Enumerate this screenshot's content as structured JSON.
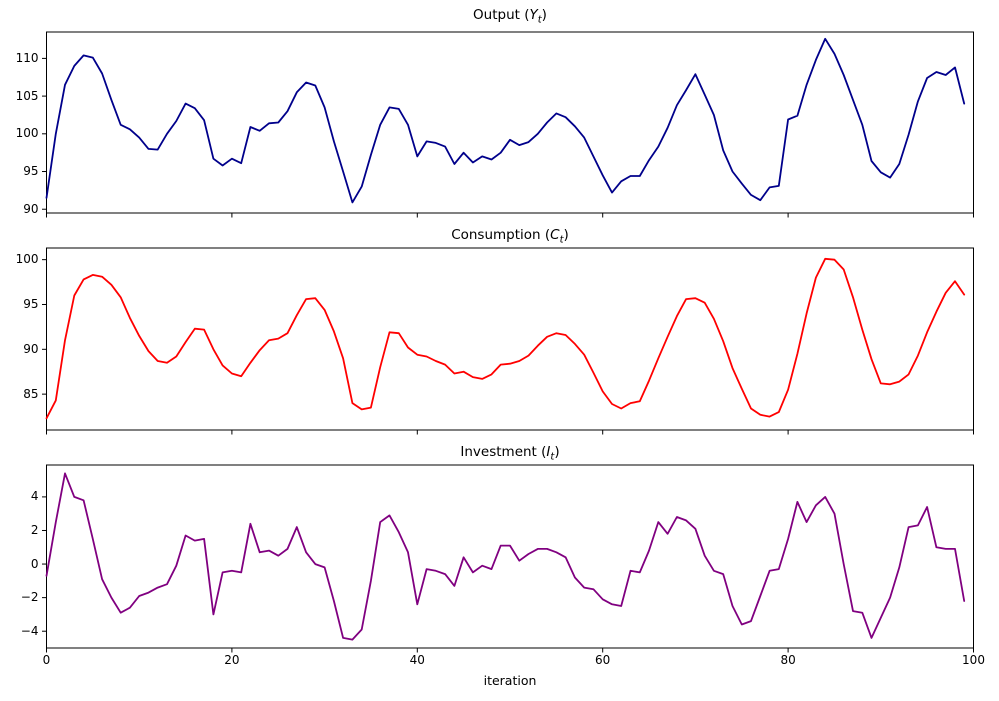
{
  "figure": {
    "background_color": "#ffffff",
    "xlabel": "iteration",
    "xlim": [
      0,
      100
    ],
    "x_ticks": [
      0,
      20,
      40,
      60,
      80,
      100
    ]
  },
  "chart_data": [
    {
      "type": "line",
      "name": "output",
      "title": {
        "prefix": "Output (",
        "symbol": "Y",
        "sub": "t",
        "suffix": ")"
      },
      "line_color": "#00008B",
      "ylim": [
        89.5,
        113.5
      ],
      "y_ticks": [
        90,
        95,
        100,
        105,
        110
      ],
      "x_start": 0,
      "x_step": 1,
      "values": [
        91.5,
        100.0,
        106.5,
        109.0,
        110.4,
        110.1,
        108.0,
        104.5,
        101.2,
        100.6,
        99.5,
        98.0,
        97.9,
        100.0,
        101.7,
        104.0,
        103.4,
        101.8,
        96.7,
        95.8,
        96.7,
        96.1,
        100.9,
        100.4,
        101.4,
        101.5,
        103.0,
        105.5,
        106.8,
        106.4,
        103.5,
        99.0,
        95.0,
        90.9,
        93.0,
        97.2,
        101.2,
        103.5,
        103.3,
        101.2,
        97.0,
        99.0,
        98.8,
        98.3,
        96.0,
        97.5,
        96.2,
        97.0,
        96.6,
        97.5,
        99.2,
        98.5,
        98.9,
        100.0,
        101.5,
        102.7,
        102.2,
        101.0,
        99.5,
        97.0,
        94.5,
        92.2,
        93.7,
        94.4,
        94.4,
        96.5,
        98.3,
        100.8,
        103.8,
        105.8,
        107.9,
        105.2,
        102.5,
        97.8,
        95.0,
        93.4,
        91.9,
        91.2,
        92.9,
        93.1,
        101.9,
        102.4,
        106.5,
        109.8,
        112.6,
        110.6,
        107.8,
        104.5,
        101.2,
        96.4,
        94.9,
        94.2,
        96.0,
        99.9,
        104.3,
        107.4,
        108.2,
        107.8,
        108.8,
        104.0
      ]
    },
    {
      "type": "line",
      "name": "consumption",
      "title": {
        "prefix": "Consumption (",
        "symbol": "C",
        "sub": "t",
        "suffix": ")"
      },
      "line_color": "#FF0000",
      "ylim": [
        81.0,
        101.3
      ],
      "y_ticks": [
        85,
        90,
        95,
        100
      ],
      "x_start": 0,
      "x_step": 1,
      "values": [
        82.3,
        84.3,
        91.0,
        96.0,
        97.8,
        98.3,
        98.1,
        97.2,
        95.8,
        93.5,
        91.5,
        89.8,
        88.7,
        88.5,
        89.2,
        90.8,
        92.3,
        92.2,
        90.0,
        88.2,
        87.3,
        87.0,
        88.5,
        89.9,
        91.0,
        91.2,
        91.8,
        93.8,
        95.6,
        95.7,
        94.4,
        92.0,
        89.0,
        84.0,
        83.3,
        83.5,
        88.0,
        91.9,
        91.8,
        90.2,
        89.4,
        89.2,
        88.7,
        88.3,
        87.3,
        87.5,
        86.9,
        86.7,
        87.2,
        88.3,
        88.4,
        88.7,
        89.3,
        90.4,
        91.4,
        91.8,
        91.6,
        90.6,
        89.4,
        87.4,
        85.3,
        83.9,
        83.4,
        84.0,
        84.2,
        86.5,
        89.0,
        91.4,
        93.7,
        95.6,
        95.7,
        95.2,
        93.4,
        90.9,
        87.9,
        85.6,
        83.4,
        82.7,
        82.5,
        83.0,
        85.5,
        89.5,
        94.0,
        98.0,
        100.1,
        100.0,
        98.9,
        95.8,
        92.2,
        88.9,
        86.2,
        86.1,
        86.4,
        87.2,
        89.3,
        91.9,
        94.2,
        96.3,
        97.6,
        96.1
      ]
    },
    {
      "type": "line",
      "name": "investment",
      "title": {
        "prefix": "Investment (",
        "symbol": "I",
        "sub": "t",
        "suffix": ")"
      },
      "line_color": "#800080",
      "ylim": [
        -5.0,
        5.9
      ],
      "y_ticks": [
        -4,
        -2,
        0,
        2,
        4
      ],
      "x_start": 0,
      "x_step": 1,
      "values": [
        -0.7,
        2.5,
        5.4,
        4.0,
        3.8,
        1.5,
        -0.9,
        -2.0,
        -2.9,
        -2.6,
        -1.9,
        -1.7,
        -1.4,
        -1.2,
        -0.1,
        1.7,
        1.4,
        1.5,
        -3.0,
        -0.5,
        -0.4,
        -0.5,
        2.4,
        0.7,
        0.8,
        0.5,
        0.9,
        2.2,
        0.7,
        0.0,
        -0.2,
        -2.2,
        -4.4,
        -4.5,
        -3.9,
        -1.0,
        2.5,
        2.9,
        1.9,
        0.7,
        -2.4,
        -0.3,
        -0.4,
        -0.6,
        -1.3,
        0.4,
        -0.5,
        -0.1,
        -0.3,
        1.1,
        1.1,
        0.2,
        0.6,
        0.9,
        0.9,
        0.7,
        0.4,
        -0.8,
        -1.4,
        -1.5,
        -2.1,
        -2.4,
        -2.5,
        -0.4,
        -0.5,
        0.8,
        2.5,
        1.8,
        2.8,
        2.6,
        2.1,
        0.5,
        -0.4,
        -0.6,
        -2.5,
        -3.6,
        -3.4,
        -1.9,
        -0.4,
        -0.3,
        1.5,
        3.7,
        2.5,
        3.5,
        4.0,
        3.0,
        0.0,
        -2.8,
        -2.9,
        -4.4,
        -3.2,
        -2.0,
        -0.2,
        2.2,
        2.3,
        3.4,
        1.0,
        0.9,
        0.9,
        -2.2
      ]
    }
  ]
}
